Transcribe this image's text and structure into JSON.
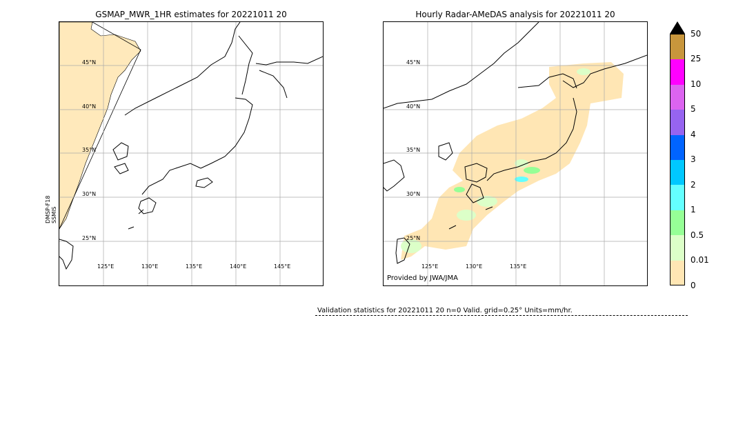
{
  "left_panel": {
    "title": "GSMAP_MWR_1HR estimates for 20221011 20",
    "satellite_label_1": "DMSP-F18",
    "satellite_label_2": "SSMIS",
    "lat_labels": [
      "45°N",
      "40°N",
      "35°N",
      "30°N",
      "25°N"
    ],
    "lon_labels": [
      "125°E",
      "130°E",
      "135°E",
      "140°E",
      "145°E"
    ]
  },
  "right_panel": {
    "title": "Hourly Radar-AMeDAS analysis for 20221011 20",
    "lat_labels": [
      "45°N",
      "40°N",
      "35°N",
      "30°N",
      "25°N"
    ],
    "lon_labels": [
      "125°E",
      "130°E",
      "135°E"
    ],
    "credit": "Provided by JWA/JMA"
  },
  "colorbar": {
    "ticks": [
      "50",
      "25",
      "10",
      "5",
      "4",
      "3",
      "2",
      "1",
      "0.5",
      "0.01",
      "0"
    ],
    "colors": [
      "#c8963c",
      "#ff00ff",
      "#dc64f0",
      "#9664f0",
      "#0064ff",
      "#00c8ff",
      "#64ffff",
      "#96ff96",
      "#dcffc8",
      "#ffe6b4"
    ],
    "extend_color": "#000000"
  },
  "validation": {
    "text": "Validation statistics for 20221011 20  n=0 Valid. grid=0.25° Units=mm/hr."
  }
}
